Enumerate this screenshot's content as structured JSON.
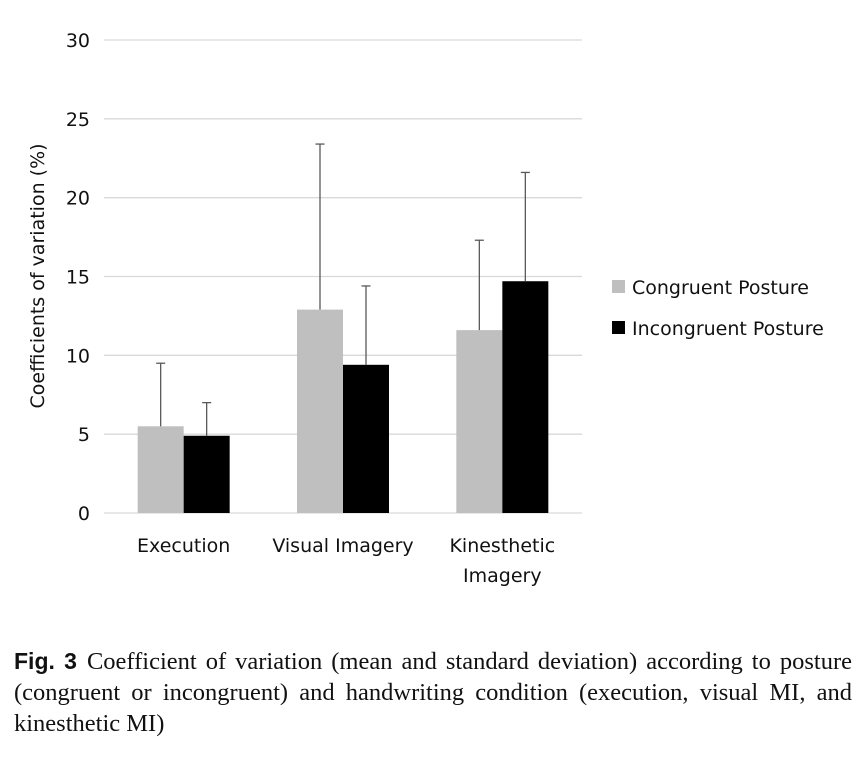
{
  "chart_data": {
    "type": "bar",
    "ylabel": "Coefficients of variation (%)",
    "ylim": [
      0,
      30
    ],
    "yticks": [
      0,
      5,
      10,
      15,
      20,
      25,
      30
    ],
    "grid": true,
    "legend_position": "right",
    "categories": [
      [
        "Execution"
      ],
      [
        "Visual Imagery"
      ],
      [
        "Kinesthetic",
        "Imagery"
      ]
    ],
    "series": [
      {
        "name": "Congruent Posture",
        "color": "#bfbfbf",
        "values": [
          5.5,
          12.9,
          11.6
        ],
        "sd": [
          4.0,
          10.5,
          5.7
        ]
      },
      {
        "name": "Incongruent Posture",
        "color": "#000000",
        "values": [
          4.9,
          9.4,
          14.7
        ],
        "sd": [
          2.1,
          5.0,
          6.9
        ]
      }
    ]
  },
  "caption": {
    "label": "Fig. 3",
    "text": "Coefficient of variation (mean and standard deviation) according to posture (congruent or incongruent) and handwriting condition (execution, visual MI, and kinesthetic MI)"
  }
}
